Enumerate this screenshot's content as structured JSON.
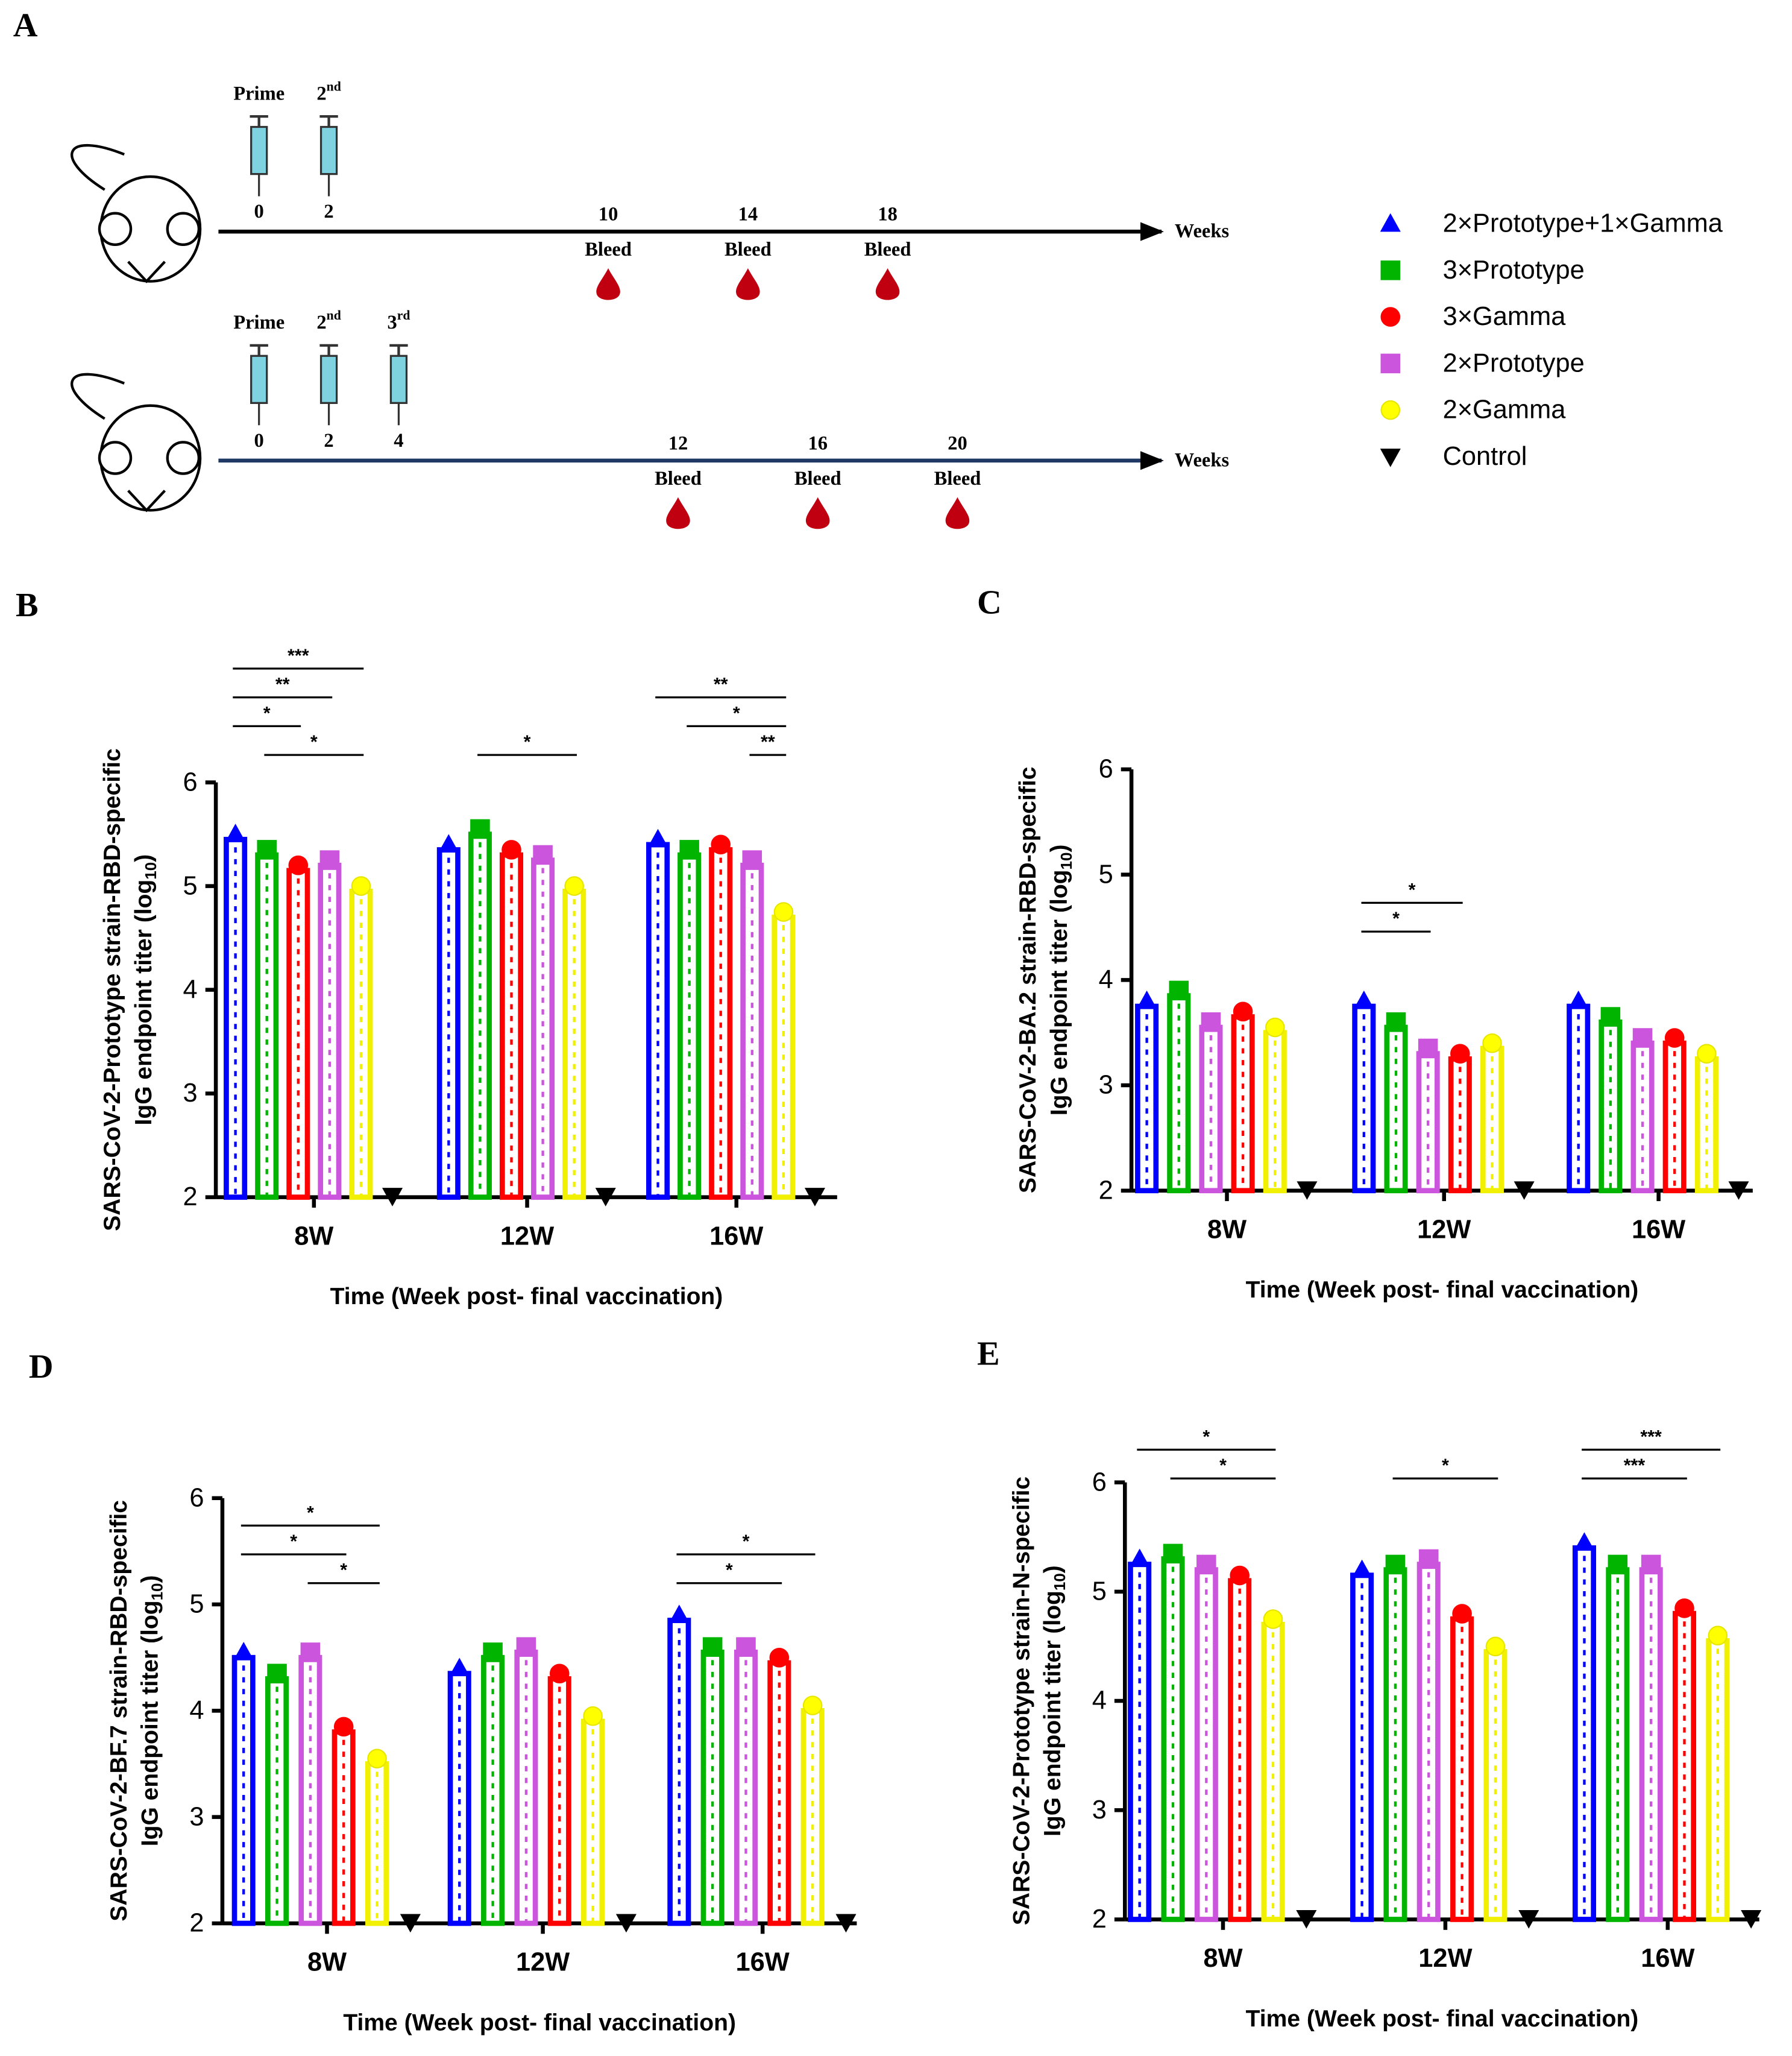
{
  "schematic": {
    "panel": "A",
    "axis_label": "Weeks",
    "timelines": [
      {
        "doses": [
          {
            "label": "Prime",
            "week": 0
          },
          {
            "label": "2",
            "sup": "nd",
            "week": 2
          }
        ],
        "bleeds": [
          {
            "week": 10,
            "label": "Bleed"
          },
          {
            "week": 14,
            "label": "Bleed"
          },
          {
            "week": 18,
            "label": "Bleed"
          }
        ]
      },
      {
        "doses": [
          {
            "label": "Prime",
            "week": 0
          },
          {
            "label": "2",
            "sup": "nd",
            "week": 2
          },
          {
            "label": "3",
            "sup": "rd",
            "week": 4
          }
        ],
        "bleeds": [
          {
            "week": 12,
            "label": "Bleed"
          },
          {
            "week": 16,
            "label": "Bleed"
          },
          {
            "week": 20,
            "label": "Bleed"
          }
        ]
      }
    ]
  },
  "chart_data": [
    {
      "type": "bar",
      "panel": "B",
      "ylabel": [
        "SARS-CoV-2-Prototype strain-RBD-specific",
        "IgG endpoint  titer (log"
      ],
      "ylabel_sub": "10",
      "ylabel_end": ")",
      "xlabel": "Time (Week post- final vaccination)",
      "categories": [
        "8W",
        "12W",
        "16W"
      ],
      "ylim": [
        2,
        6
      ],
      "yticks": [
        2,
        3,
        4,
        5,
        6
      ],
      "series": [
        {
          "name": "2×Prototype+1×Gamma",
          "color": "#0000ff",
          "marker": "triangle",
          "values": [
            5.45,
            5.35,
            5.4
          ]
        },
        {
          "name": "3×Prototype",
          "color": "#00b400",
          "marker": "square",
          "values": [
            5.3,
            5.5,
            5.3
          ]
        },
        {
          "name": "3×Gamma",
          "color": "#ff0000",
          "marker": "circle",
          "values": [
            5.15,
            5.3,
            5.35
          ]
        },
        {
          "name": "2×Prototype",
          "color": "#cc55dd",
          "marker": "square",
          "values": [
            5.2,
            5.25,
            5.2
          ]
        },
        {
          "name": "2×Gamma",
          "color": "#ffff00",
          "marker": "circle",
          "values": [
            4.95,
            4.95,
            4.7
          ]
        },
        {
          "name": "Control",
          "color": "#000000",
          "marker": "triangle-down",
          "values": [
            2,
            2,
            2
          ]
        }
      ],
      "annotations": [
        {
          "label": "***",
          "category": 0,
          "from": 0,
          "to": 4
        },
        {
          "label": "**",
          "category": 0,
          "from": 0,
          "to": 3
        },
        {
          "label": "*",
          "category": 0,
          "from": 0,
          "to": 2
        },
        {
          "label": "*",
          "category": 0,
          "from": 1,
          "to": 4
        },
        {
          "label": "*",
          "category": 1,
          "from": 1,
          "to": 4
        },
        {
          "label": "**",
          "category": 2,
          "from": 0,
          "to": 4
        },
        {
          "label": "*",
          "category": 2,
          "from": 1,
          "to": 4
        },
        {
          "label": "**",
          "category": 2,
          "from": 3,
          "to": 4
        }
      ]
    },
    {
      "type": "bar",
      "panel": "C",
      "ylabel": [
        "SARS-CoV-2-BA.2 strain-RBD-specific",
        "IgG endpoint  titer (log"
      ],
      "ylabel_sub": "10",
      "ylabel_end": ")",
      "xlabel": "Time (Week post- final vaccination)",
      "categories": [
        "8W",
        "12W",
        "16W"
      ],
      "ylim": [
        2,
        6
      ],
      "yticks": [
        2,
        3,
        4,
        5,
        6
      ],
      "series": [
        {
          "color": "#0000ff",
          "marker": "triangle",
          "values": [
            3.75,
            3.75,
            3.75
          ]
        },
        {
          "color": "#00b400",
          "marker": "square",
          "values": [
            3.85,
            3.55,
            3.6
          ]
        },
        {
          "color": "#cc55dd",
          "marker": "square",
          "values": [
            3.55,
            3.3,
            3.4
          ]
        },
        {
          "color": "#ff0000",
          "marker": "circle",
          "values": [
            3.65,
            3.25,
            3.4
          ]
        },
        {
          "color": "#ffff00",
          "marker": "circle",
          "values": [
            3.5,
            3.35,
            3.25
          ]
        },
        {
          "color": "#000000",
          "marker": "triangle-down",
          "values": [
            2,
            2,
            2
          ]
        }
      ],
      "annotations": [
        {
          "label": "*",
          "category": 1,
          "from": 0,
          "to": 3
        },
        {
          "label": "*",
          "category": 1,
          "from": 0,
          "to": 2
        }
      ]
    },
    {
      "type": "bar",
      "panel": "D",
      "ylabel": [
        "SARS-CoV-2-BF.7 strain-RBD-specific",
        "IgG endpoint  titer (log"
      ],
      "ylabel_sub": "10",
      "ylabel_end": ")",
      "xlabel": "Time (Week post- final vaccination)",
      "categories": [
        "8W",
        "12W",
        "16W"
      ],
      "ylim": [
        2,
        6
      ],
      "yticks": [
        2,
        3,
        4,
        5,
        6
      ],
      "series": [
        {
          "color": "#0000ff",
          "marker": "triangle",
          "values": [
            4.5,
            4.35,
            4.85
          ]
        },
        {
          "color": "#00b400",
          "marker": "square",
          "values": [
            4.3,
            4.5,
            4.55
          ]
        },
        {
          "color": "#cc55dd",
          "marker": "square",
          "values": [
            4.5,
            4.55,
            4.55
          ]
        },
        {
          "color": "#ff0000",
          "marker": "circle",
          "values": [
            3.8,
            4.3,
            4.45
          ]
        },
        {
          "color": "#ffff00",
          "marker": "circle",
          "values": [
            3.5,
            3.9,
            4.0
          ]
        },
        {
          "color": "#000000",
          "marker": "triangle-down",
          "values": [
            2,
            2,
            2
          ]
        }
      ],
      "annotations": [
        {
          "label": "*",
          "category": 0,
          "from": 0,
          "to": 4
        },
        {
          "label": "*",
          "category": 0,
          "from": 0,
          "to": 3
        },
        {
          "label": "*",
          "category": 0,
          "from": 2,
          "to": 4
        },
        {
          "label": "*",
          "category": 2,
          "from": 0,
          "to": 4
        },
        {
          "label": "*",
          "category": 2,
          "from": 0,
          "to": 3
        }
      ]
    },
    {
      "type": "bar",
      "panel": "E",
      "ylabel": [
        "SARS-CoV-2-Prototype strain-N-specific",
        "IgG endpoint  titer (log"
      ],
      "ylabel_sub": "10",
      "ylabel_end": ")",
      "xlabel": "Time (Week post- final vaccination)",
      "categories": [
        "8W",
        "12W",
        "16W"
      ],
      "ylim": [
        2,
        6
      ],
      "yticks": [
        2,
        3,
        4,
        5,
        6
      ],
      "series": [
        {
          "color": "#0000ff",
          "marker": "triangle",
          "values": [
            5.25,
            5.15,
            5.4
          ]
        },
        {
          "color": "#00b400",
          "marker": "square",
          "values": [
            5.3,
            5.2,
            5.2
          ]
        },
        {
          "color": "#cc55dd",
          "marker": "square",
          "values": [
            5.2,
            5.25,
            5.2
          ]
        },
        {
          "color": "#ff0000",
          "marker": "circle",
          "values": [
            5.1,
            4.75,
            4.8
          ]
        },
        {
          "color": "#ffff00",
          "marker": "circle",
          "values": [
            4.7,
            4.45,
            4.55
          ]
        },
        {
          "color": "#000000",
          "marker": "triangle-down",
          "values": [
            2,
            2,
            2
          ]
        }
      ],
      "annotations": [
        {
          "label": "*",
          "category": 0,
          "from": 0,
          "to": 4
        },
        {
          "label": "*",
          "category": 0,
          "from": 1,
          "to": 4
        },
        {
          "label": "*",
          "category": 1,
          "from": 1,
          "to": 4
        },
        {
          "label": "***",
          "category": 2,
          "from": 0,
          "to": 4
        },
        {
          "label": "***",
          "category": 2,
          "from": 0,
          "to": 3
        }
      ]
    }
  ]
}
